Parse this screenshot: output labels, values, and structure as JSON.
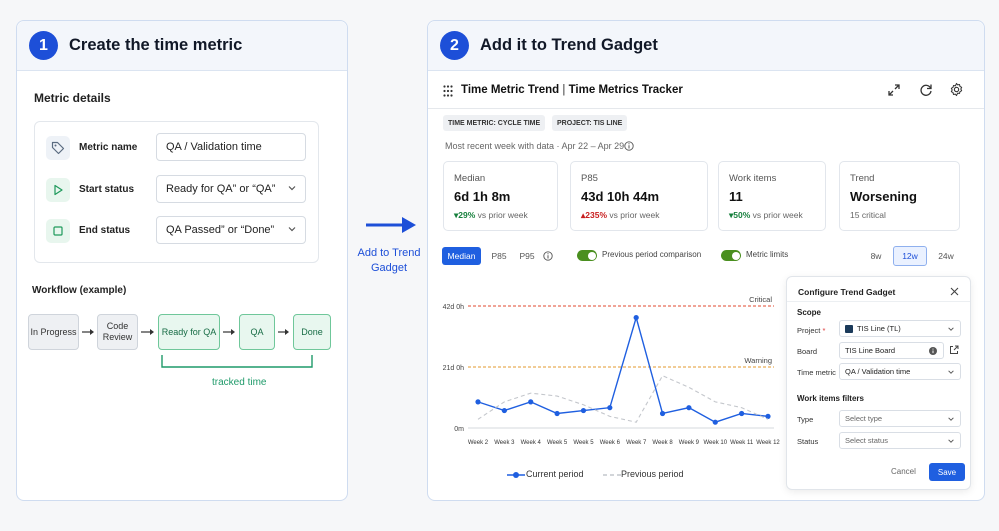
{
  "step1": {
    "number": "1",
    "title": "Create the time metric",
    "section_title": "Metric details",
    "fields": [
      {
        "icon": "tag-icon",
        "label": "Metric name",
        "value": "QA / Validation time",
        "dropdown": false
      },
      {
        "icon": "play-icon",
        "label": "Start status",
        "value": "Ready for QA” or “QA”",
        "dropdown": true
      },
      {
        "icon": "stop-icon",
        "label": "End status",
        "value": "QA Passed” or “Done”",
        "dropdown": true
      }
    ],
    "workflow_title": "Workflow (example)",
    "workflow": [
      "In Progress",
      "Code Review",
      "Ready for QA",
      "QA",
      "Done"
    ],
    "tracked_label": "tracked time"
  },
  "arrow_label": "Add to Trend Gadget",
  "step2": {
    "number": "2",
    "title": "Add it to Trend Gadget",
    "gadget_title": "Time Metric Trend",
    "gadget_subtitle": "Time Metrics Tracker",
    "tags": [
      "TIME METRIC: CYCLE TIME",
      "PROJECT: TIS LINE"
    ],
    "recent_week": "Most recent week with data · Apr 22 – Apr 29",
    "cards": [
      {
        "label": "Median",
        "value": "6d 1h 8m",
        "delta": "▾29%",
        "delta_dir": "good",
        "delta_suffix": "vs prior week"
      },
      {
        "label": "P85",
        "value": "43d 10h 44m",
        "delta": "▴235%",
        "delta_dir": "bad",
        "delta_suffix": "vs prior week"
      },
      {
        "label": "Work items",
        "value": "11",
        "delta": "▾50%",
        "delta_dir": "good",
        "delta_suffix": "vs prior week"
      },
      {
        "label": "Trend",
        "value": "Worsening",
        "delta": "",
        "delta_dir": "",
        "delta_suffix": "15 critical"
      }
    ],
    "stat_tabs": [
      "Median",
      "P85",
      "P95"
    ],
    "active_stat": "Median",
    "toggles": [
      {
        "label": "Previous period comparison",
        "on": true
      },
      {
        "label": "Metric limits",
        "on": true
      }
    ],
    "range_tabs": [
      "8w",
      "12w",
      "24w"
    ],
    "active_range": "12w"
  },
  "chart_data": {
    "type": "line",
    "categories": [
      "Week 2",
      "Week 3",
      "Week 4",
      "Week 5",
      "Week 5",
      "Week 6",
      "Week 7",
      "Week 8",
      "Week 9",
      "Week 10",
      "Week 11",
      "Week 12"
    ],
    "series": [
      {
        "name": "Current period",
        "values": [
          9,
          6,
          9,
          5,
          6,
          7,
          38,
          5,
          7,
          2,
          5,
          4
        ],
        "style": "solid",
        "color": "#1f5fe0"
      },
      {
        "name": "Previous period",
        "values": [
          3,
          9,
          12,
          11,
          8,
          4,
          2,
          18,
          14,
          9,
          7,
          3
        ],
        "style": "dashed",
        "color": "#c4c7cc"
      }
    ],
    "ylim": [
      0,
      42
    ],
    "yticks": [
      {
        "value": 0,
        "label": "0m"
      },
      {
        "value": 21,
        "label": "21d 0h"
      },
      {
        "value": 42,
        "label": "42d 0h"
      }
    ],
    "thresholds": [
      {
        "label": "Critical",
        "value": 42,
        "color": "#e0492f"
      },
      {
        "label": "Warning",
        "value": 21,
        "color": "#e39a2d"
      }
    ],
    "legend_position": "bottom"
  },
  "config": {
    "title": "Configure Trend Gadget",
    "scope_title": "Scope",
    "project_label": "Project",
    "project_value": "TIS Line (TL)",
    "board_label": "Board",
    "board_value": "TIS Line Board",
    "time_metric_label": "Time metric",
    "time_metric_value": "QA / Validation time",
    "filters_title": "Work items filters",
    "type_label": "Type",
    "type_placeholder": "Select type",
    "status_label": "Status",
    "status_placeholder": "Select status",
    "cancel_label": "Cancel",
    "save_label": "Save"
  }
}
